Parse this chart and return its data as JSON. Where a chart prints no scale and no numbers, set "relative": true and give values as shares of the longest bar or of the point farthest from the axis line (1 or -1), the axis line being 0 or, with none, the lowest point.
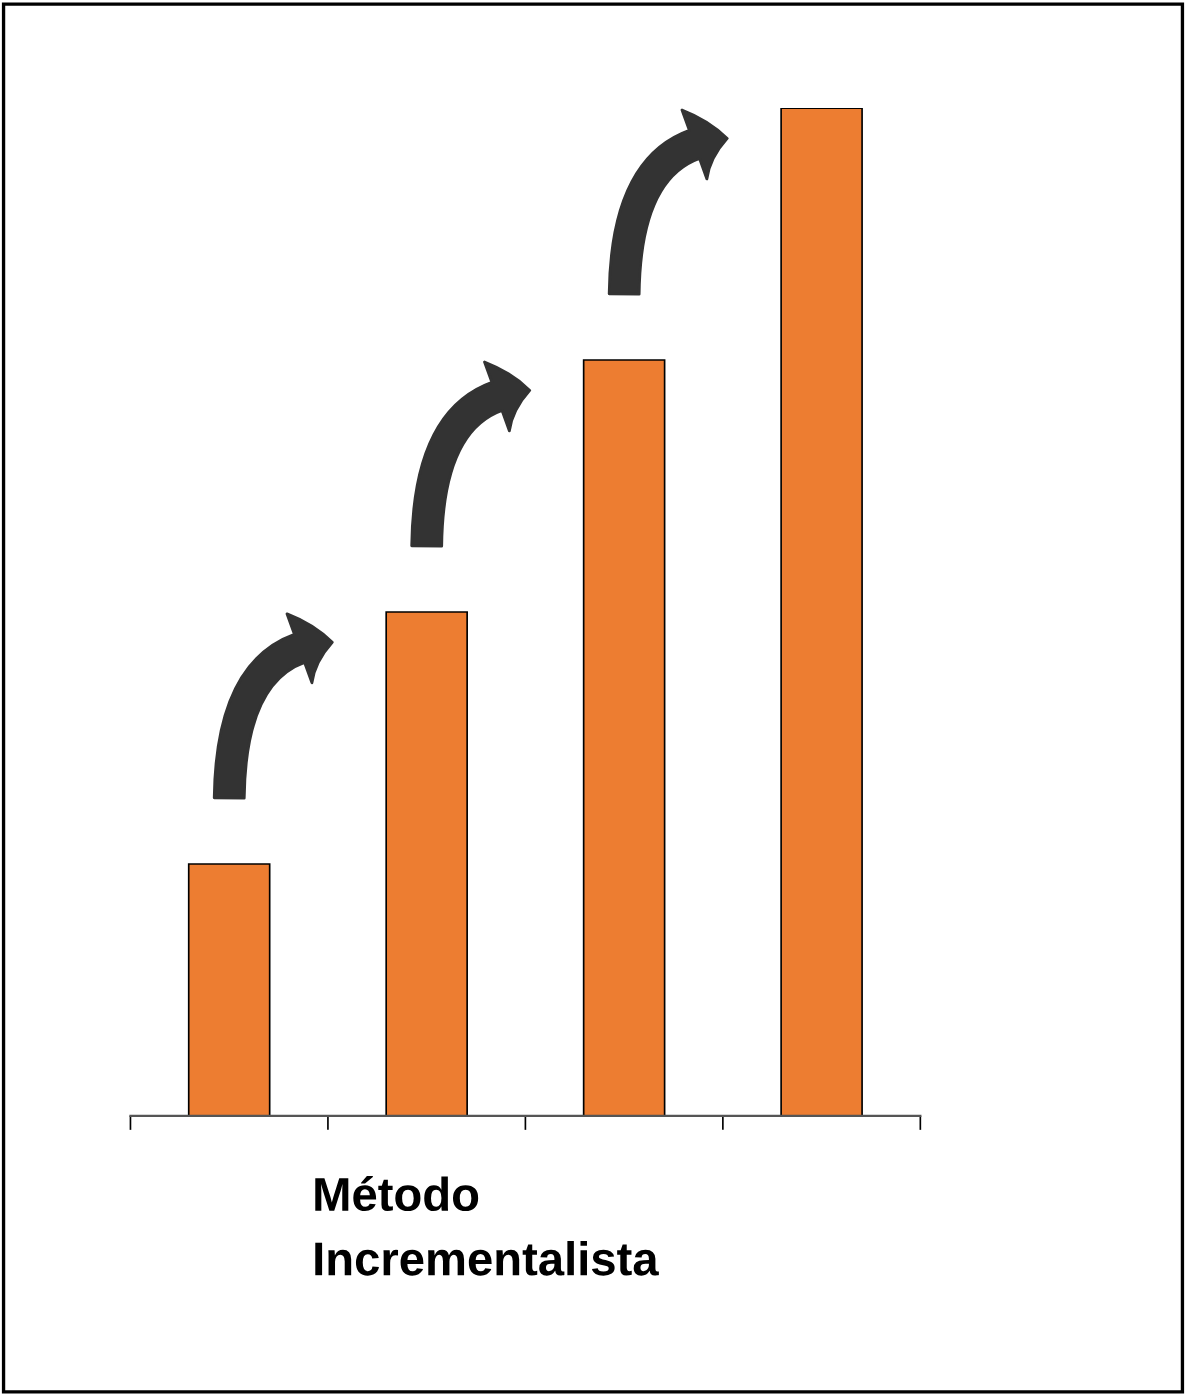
{
  "chart_data": {
    "type": "bar",
    "relative": true,
    "xlabel": "Método\nIncrementalista",
    "categories": [
      null,
      null,
      null,
      null
    ],
    "values": [
      0.25,
      0.5,
      0.75,
      1.0
    ],
    "color": "#ed7d31"
  }
}
